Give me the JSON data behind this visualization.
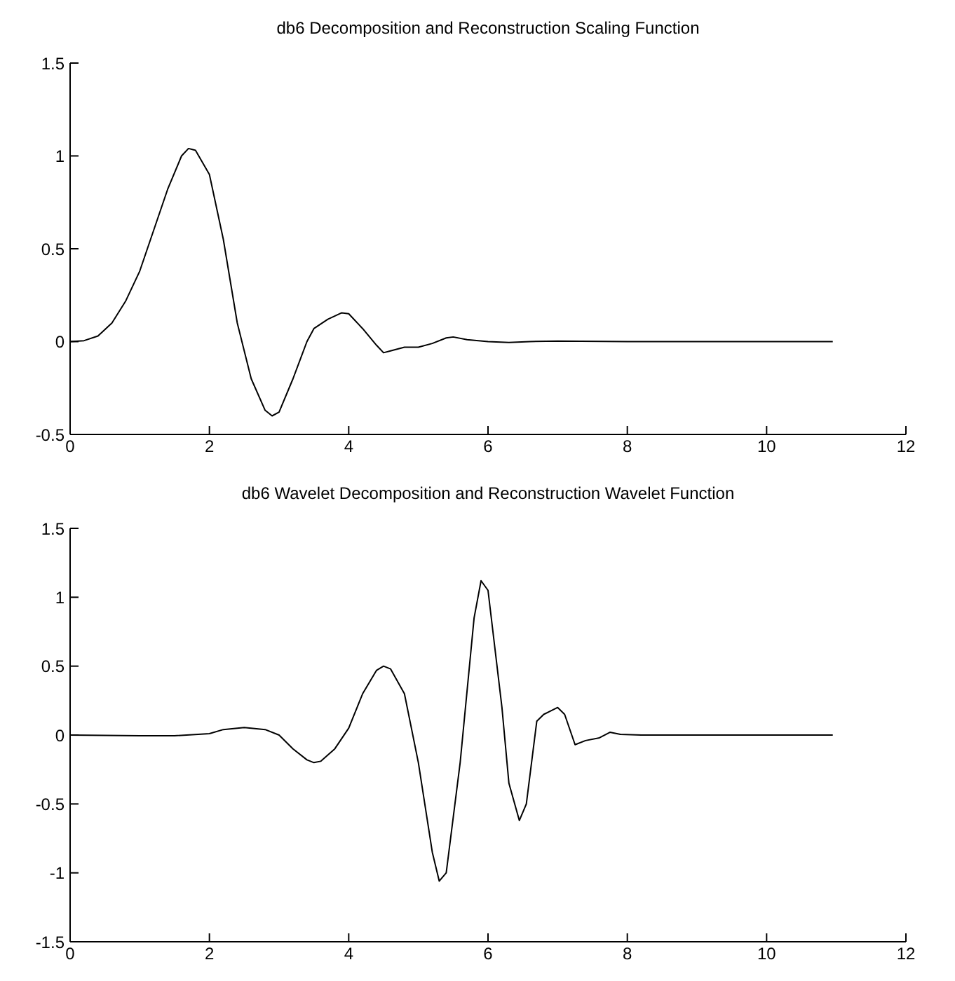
{
  "chart_data": [
    {
      "type": "line",
      "title": "db6  Decomposition and Reconstruction Scaling Function",
      "xlim": [
        0,
        12
      ],
      "xticks": [
        0,
        2,
        4,
        6,
        8,
        10,
        12
      ],
      "ylim": [
        -0.5,
        1.5
      ],
      "yticks": [
        -0.5,
        0,
        0.5,
        1,
        1.5
      ],
      "series": [
        {
          "color": "#000000",
          "x": [
            0,
            0.2,
            0.4,
            0.6,
            0.8,
            1.0,
            1.2,
            1.4,
            1.6,
            1.7,
            1.8,
            2.0,
            2.2,
            2.4,
            2.6,
            2.8,
            2.9,
            3.0,
            3.2,
            3.4,
            3.5,
            3.7,
            3.9,
            4.0,
            4.2,
            4.4,
            4.5,
            4.6,
            4.8,
            5.0,
            5.2,
            5.4,
            5.5,
            5.7,
            6.0,
            6.3,
            6.6,
            7.0,
            8,
            9,
            10,
            10.95
          ],
          "values": [
            0,
            0.005,
            0.03,
            0.1,
            0.22,
            0.38,
            0.6,
            0.82,
            1.0,
            1.04,
            1.03,
            0.9,
            0.55,
            0.1,
            -0.2,
            -0.37,
            -0.4,
            -0.38,
            -0.2,
            0.0,
            0.07,
            0.12,
            0.155,
            0.15,
            0.07,
            -0.02,
            -0.06,
            -0.05,
            -0.03,
            -0.03,
            -0.01,
            0.02,
            0.025,
            0.01,
            0,
            -0.005,
            0,
            0.003,
            0,
            0,
            0,
            0
          ]
        }
      ]
    },
    {
      "type": "line",
      "title": "db6 Wavelet Decomposition and Reconstruction Wavelet Function",
      "xlim": [
        0,
        12
      ],
      "xticks": [
        0,
        2,
        4,
        6,
        8,
        10,
        12
      ],
      "ylim": [
        -1.5,
        1.5
      ],
      "yticks": [
        -1.5,
        -1,
        -0.5,
        0,
        0.5,
        1,
        1.5
      ],
      "series": [
        {
          "color": "#000000",
          "x": [
            0,
            1,
            1.5,
            2,
            2.2,
            2.5,
            2.8,
            3.0,
            3.2,
            3.4,
            3.5,
            3.6,
            3.8,
            4.0,
            4.2,
            4.4,
            4.5,
            4.6,
            4.8,
            5.0,
            5.2,
            5.3,
            5.4,
            5.6,
            5.8,
            5.9,
            6.0,
            6.2,
            6.3,
            6.45,
            6.55,
            6.7,
            6.8,
            7.0,
            7.1,
            7.25,
            7.4,
            7.6,
            7.75,
            7.9,
            8.2,
            9,
            10,
            10.95
          ],
          "values": [
            0,
            -0.005,
            -0.005,
            0.01,
            0.04,
            0.055,
            0.04,
            0.0,
            -0.1,
            -0.18,
            -0.2,
            -0.19,
            -0.1,
            0.05,
            0.3,
            0.47,
            0.5,
            0.48,
            0.3,
            -0.2,
            -0.85,
            -1.06,
            -1.0,
            -0.2,
            0.85,
            1.12,
            1.05,
            0.2,
            -0.35,
            -0.62,
            -0.5,
            0.1,
            0.15,
            0.2,
            0.15,
            -0.07,
            -0.04,
            -0.02,
            0.02,
            0.005,
            0,
            0,
            0,
            0
          ]
        }
      ]
    }
  ]
}
